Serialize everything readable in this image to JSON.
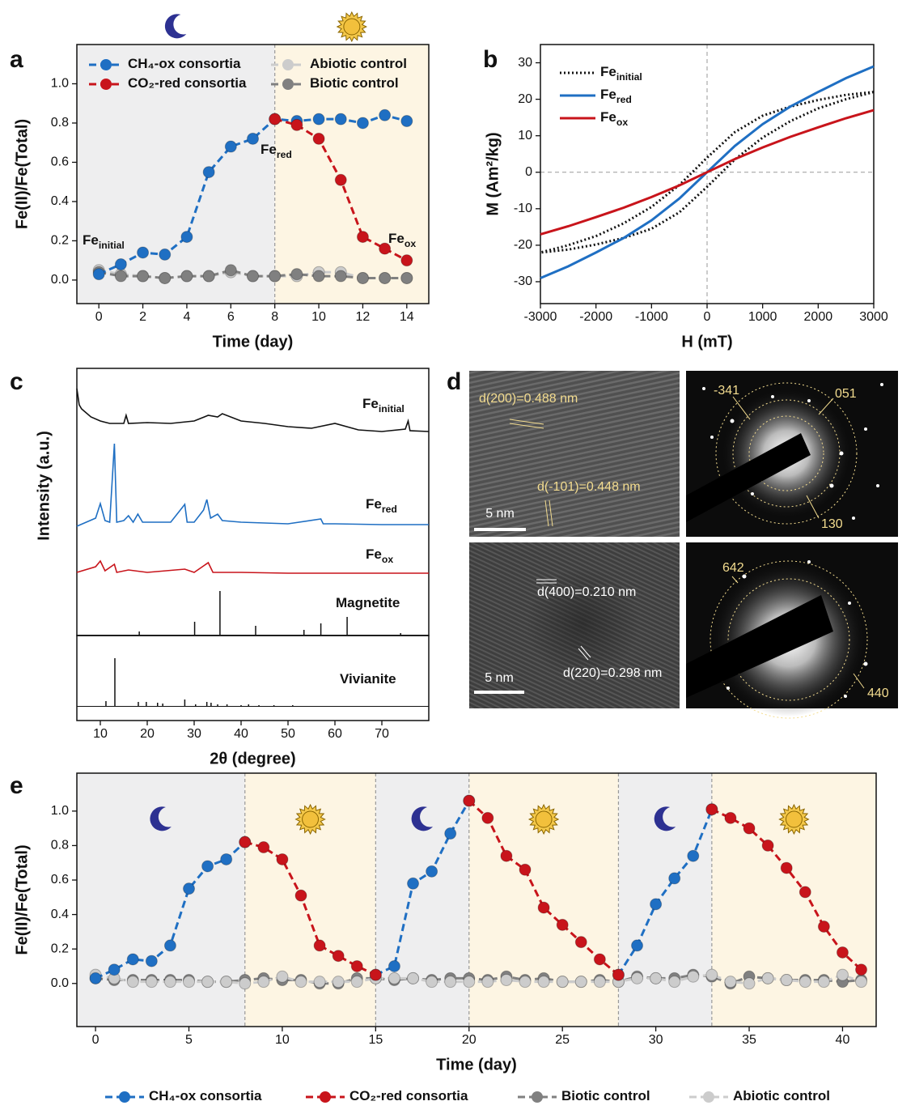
{
  "panel_labels": [
    "a",
    "b",
    "c",
    "d",
    "e"
  ],
  "chart_data": [
    {
      "type": "line",
      "markers": true,
      "ylabel": "Fe(II)/Fe(Total)",
      "xlabel": "Time (day)",
      "x": [
        0,
        1,
        2,
        3,
        4,
        5,
        6,
        7,
        8,
        9,
        10,
        11,
        12,
        13,
        14
      ],
      "xlim": [
        -1,
        15
      ],
      "xticks": [
        0,
        2,
        4,
        6,
        8,
        10,
        12,
        14
      ],
      "ylim": [
        -0.12,
        1.2
      ],
      "yticks": [
        {
          "value": 0,
          "label": "0.0"
        },
        0.2,
        0.4,
        0.6,
        0.8,
        {
          "value": 1,
          "label": "1.0"
        }
      ],
      "phase_boundaries": [
        8
      ],
      "phase_colors": [
        "#eeeeef",
        "#fdf5e3"
      ],
      "series": [
        {
          "name": "CH₄-ox  consortia",
          "color": "#1f6fc3",
          "line_style": "dashed",
          "values": [
            0.03,
            0.08,
            0.14,
            0.13,
            0.22,
            0.55,
            0.68,
            0.72,
            0.82,
            0.81,
            0.82,
            0.82,
            0.8,
            0.84,
            0.81
          ]
        },
        {
          "name": "CO₂-red consortia",
          "color": "#c8141b",
          "line_style": "dashed",
          "values": [
            null,
            null,
            null,
            null,
            null,
            null,
            null,
            null,
            0.82,
            0.79,
            0.72,
            0.51,
            0.22,
            0.16,
            0.1
          ]
        },
        {
          "name": "Abiotic control",
          "color": "#cccccc",
          "line_style": "dashed",
          "values": [
            0.05,
            0.03,
            0.02,
            0.01,
            0.02,
            0.02,
            0.04,
            0.02,
            0.02,
            0.02,
            0.04,
            0.04,
            0.01,
            0.01,
            0.01
          ]
        },
        {
          "name": "Biotic control",
          "color": "#808080",
          "line_style": "dashed",
          "values": [
            0.04,
            0.02,
            0.02,
            0.01,
            0.02,
            0.02,
            0.05,
            0.02,
            0.02,
            0.03,
            0.02,
            0.02,
            0.01,
            0.01,
            0.01
          ]
        }
      ],
      "annotations": [
        {
          "text": "Fe",
          "sub": "initial"
        },
        {
          "text": "Fe",
          "sub": "red"
        },
        {
          "text": "Fe",
          "sub": "ox"
        }
      ]
    },
    {
      "type": "line",
      "xlabel": "H (mT)",
      "ylabel": "M (Am²/kg)",
      "zero_lines": true,
      "xlim": [
        -3000,
        3000
      ],
      "xticks": [
        -3000,
        -2000,
        -1000,
        0,
        1000,
        2000,
        3000
      ],
      "ylim": [
        -36,
        35
      ],
      "yticks": [
        -30,
        -20,
        -10,
        0,
        10,
        20,
        30
      ],
      "series": [
        {
          "name": "Fe",
          "name_sub": "initial",
          "color": "#111111",
          "line_style": "dotted",
          "x": [
            3000,
            2500,
            2000,
            1500,
            1000,
            500,
            0,
            -500,
            -1000,
            -1500,
            -2000,
            -2500,
            -3000,
            -2500,
            -2000,
            -1500,
            -1000,
            -500,
            0,
            500,
            1000,
            1500,
            2000,
            2500,
            3000
          ],
          "values": [
            22,
            21.2,
            19.8,
            18,
            15.5,
            11,
            4,
            -3.5,
            -9.5,
            -14,
            -17.5,
            -20,
            -22,
            -21.2,
            -19.8,
            -18,
            -15.5,
            -11,
            -4,
            3.5,
            9.5,
            14,
            17.5,
            20,
            22
          ]
        },
        {
          "name": "Fe",
          "name_sub": "red",
          "color": "#1f6fc3",
          "line_style": "solid",
          "x": [
            -3000,
            -2500,
            -2000,
            -1500,
            -1000,
            -500,
            0,
            500,
            1000,
            1500,
            2000,
            2500,
            3000
          ],
          "values": [
            -29,
            -25.8,
            -22,
            -18,
            -13.2,
            -7.2,
            0,
            7.2,
            13.2,
            18,
            22,
            25.8,
            29
          ]
        },
        {
          "name": "Fe",
          "name_sub": "ox",
          "color": "#c8141b",
          "line_style": "solid",
          "x": [
            -3000,
            -2500,
            -2000,
            -1500,
            -1000,
            -500,
            0,
            500,
            1000,
            1500,
            2000,
            2500,
            3000
          ],
          "values": [
            -17,
            -14.8,
            -12.3,
            -9.7,
            -6.8,
            -3.6,
            0,
            3.6,
            6.8,
            9.7,
            12.3,
            14.8,
            17
          ]
        }
      ]
    },
    {
      "type": "line",
      "ylabel": "Intensity (a.u.)",
      "xlim": [
        5,
        80
      ],
      "ylim": [
        0,
        330
      ],
      "series": [
        {
          "name": "Fe",
          "name_sub": "initial",
          "color": "#111111",
          "line_style": "solid",
          "x": [
            5,
            5.5,
            6,
            8,
            10,
            12,
            15,
            15.5,
            16,
            20,
            25,
            30,
            33,
            35,
            36,
            40,
            45,
            50,
            55,
            60,
            65,
            70,
            75,
            75.6,
            76,
            80
          ],
          "values": [
            305,
            285,
            280,
            270,
            265,
            262,
            262,
            272,
            262,
            263,
            262,
            265,
            272,
            270,
            274,
            265,
            262,
            258,
            256,
            262,
            254,
            252,
            255,
            265,
            253,
            252
          ]
        },
        {
          "name": "Fe",
          "name_sub": "red",
          "color": "#1f6fc3",
          "line_style": "solid",
          "x": [
            5,
            9,
            10,
            11,
            12,
            13,
            13.5,
            15,
            16,
            17,
            18,
            19,
            25,
            28,
            28.5,
            30,
            32,
            32.7,
            33.5,
            35,
            36,
            40,
            50,
            57,
            57.5,
            60,
            70,
            80
          ],
          "values": [
            135,
            145,
            163,
            142,
            140,
            237,
            140,
            142,
            148,
            140,
            150,
            140,
            140,
            162,
            140,
            140,
            155,
            168,
            145,
            150,
            142,
            140,
            138,
            144,
            138,
            138,
            137,
            137
          ]
        },
        {
          "name": "Fe",
          "name_sub": "ox",
          "color": "#c8141b",
          "line_style": "solid",
          "x": [
            5,
            9,
            10,
            11,
            13,
            13.5,
            16,
            20,
            28,
            30,
            32,
            33,
            34,
            40,
            50,
            60,
            70,
            80
          ],
          "values": [
            78,
            85,
            92,
            80,
            88,
            78,
            81,
            78,
            82,
            78,
            86,
            90,
            78,
            78,
            77,
            77,
            77,
            77
          ]
        },
        {
          "name": "Magnetite",
          "color": "#111111",
          "line_style": "sticks",
          "x": [
            18.3,
            30.1,
            35.5,
            43.1,
            53.4,
            57,
            62.6,
            74
          ],
          "values": [
            5,
            17,
            55,
            12,
            7,
            15,
            23,
            3
          ]
        }
      ]
    },
    {
      "type": "line",
      "xlabel": "2θ (degree)",
      "xlim": [
        5,
        80
      ],
      "xticks": [
        10,
        20,
        30,
        40,
        50,
        60,
        70
      ],
      "ylim": [
        -17,
        88
      ],
      "series": [
        {
          "name": "Vivianite",
          "color": "#111111",
          "line_style": "sticks",
          "x": [
            11.2,
            13.1,
            18.1,
            19.8,
            22.2,
            23.3,
            28,
            30.3,
            32.7,
            33.6,
            35,
            37,
            40,
            41.6,
            43.8,
            47,
            51
          ],
          "values": [
            7,
            60,
            6,
            6,
            5,
            4,
            9,
            3,
            6,
            5,
            3,
            3,
            2,
            3,
            2,
            2,
            2
          ]
        }
      ]
    },
    {
      "type": "line",
      "markers": true,
      "ylabel": "Fe(II)/Fe(Total)",
      "xlabel": "Time (day)",
      "x": [
        0,
        1,
        2,
        3,
        4,
        5,
        6,
        7,
        8,
        9,
        10,
        11,
        12,
        13,
        14,
        15,
        16,
        17,
        18,
        19,
        20,
        21,
        22,
        23,
        24,
        25,
        26,
        27,
        28,
        29,
        30,
        31,
        32,
        33,
        34,
        35,
        36,
        37,
        38,
        39,
        40,
        41
      ],
      "xlim": [
        -1,
        41.8
      ],
      "xticks": [
        0,
        5,
        10,
        15,
        20,
        25,
        30,
        35,
        40
      ],
      "ylim": [
        -0.25,
        1.22
      ],
      "yticks": [
        {
          "value": 0,
          "label": "0.0"
        },
        0.2,
        0.4,
        0.6,
        0.8,
        {
          "value": 1,
          "label": "1.0"
        }
      ],
      "phase_boundaries": [
        8,
        15,
        20,
        28,
        33
      ],
      "phase_colors": [
        "#eeeeef",
        "#fdf5e3",
        "#eeeeef",
        "#fdf5e3",
        "#eeeeef",
        "#fdf5e3"
      ],
      "series": [
        {
          "name": "CH₄-ox  consortia",
          "color": "#1f6fc3",
          "line_style": "dashed",
          "values": [
            0.03,
            0.08,
            0.14,
            0.13,
            0.22,
            0.55,
            0.68,
            0.72,
            0.82,
            null,
            null,
            null,
            null,
            null,
            null,
            0.05,
            0.1,
            0.58,
            0.65,
            0.87,
            1.06,
            null,
            null,
            null,
            null,
            null,
            null,
            null,
            0.05,
            0.22,
            0.46,
            0.61,
            0.74,
            1.01,
            null,
            null,
            null,
            null,
            null,
            null,
            null,
            null
          ]
        },
        {
          "name": "CO₂-red consortia",
          "color": "#c8141b",
          "line_style": "dashed",
          "values": [
            null,
            null,
            null,
            null,
            null,
            null,
            null,
            null,
            0.82,
            0.79,
            0.72,
            0.51,
            0.22,
            0.16,
            0.1,
            0.05,
            null,
            null,
            null,
            null,
            1.06,
            0.96,
            0.74,
            0.66,
            0.44,
            0.34,
            0.24,
            0.14,
            0.05,
            null,
            null,
            null,
            null,
            1.01,
            0.96,
            0.9,
            0.8,
            0.67,
            0.53,
            0.33,
            0.18,
            0.08
          ]
        },
        {
          "name": "Biotic control",
          "color": "#808080",
          "line_style": "dashed",
          "values": [
            0.03,
            0.02,
            0.02,
            0.02,
            0.02,
            0.02,
            0.01,
            0.01,
            0.02,
            0.03,
            0.02,
            0.02,
            0.0,
            0.0,
            0.03,
            0.03,
            0.02,
            0.03,
            0.02,
            0.03,
            0.03,
            0.02,
            0.04,
            0.02,
            0.03,
            0.01,
            0.01,
            0.02,
            0.01,
            0.04,
            0.03,
            0.03,
            0.05,
            0.04,
            0.0,
            0.04,
            0.03,
            0.02,
            0.02,
            0.02,
            0.01,
            0.02
          ]
        },
        {
          "name": "Abiotic control",
          "color": "#cccccc",
          "line_style": "dashed",
          "values": [
            0.05,
            0.03,
            0.01,
            0.01,
            0.01,
            0.01,
            0.01,
            0.01,
            0.0,
            0.01,
            0.04,
            0.01,
            0.01,
            0.01,
            0.01,
            0.03,
            0.03,
            0.03,
            0.01,
            0.01,
            0.01,
            0.01,
            0.02,
            0.01,
            0.01,
            0.01,
            0.01,
            0.01,
            0.01,
            0.03,
            0.03,
            0.01,
            0.04,
            0.05,
            0.01,
            0.0,
            0.03,
            0.02,
            0.01,
            0.01,
            0.05,
            0.01
          ]
        }
      ]
    }
  ],
  "tem_images": [
    {
      "labels": [
        "d(200)=0.488 nm",
        "d(-101)=0.448 nm"
      ],
      "scale_bar": "5 nm"
    },
    {
      "labels": [
        "-341",
        "051",
        "130"
      ]
    },
    {
      "labels": [
        "d(400)=0.210 nm",
        "d(220)=0.298 nm"
      ],
      "scale_bar": "5 nm"
    },
    {
      "labels": [
        "642",
        "440"
      ]
    }
  ]
}
